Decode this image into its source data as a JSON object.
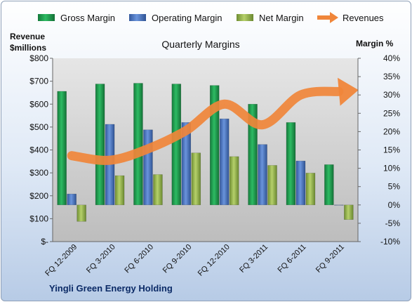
{
  "colors": {
    "gross": "#1f9e4f",
    "operating": "#4a78c8",
    "net": "#98b94a",
    "revenue": "#f0863a",
    "plot_bg": "#d0d0d0"
  },
  "chart_data": {
    "type": "bar",
    "title": "Quarterly Margins",
    "subtitle": "Yingli Green Energy Holding",
    "categories": [
      "FQ 12-2009",
      "FQ 3-2010",
      "FQ 6-2010",
      "FQ 9-2010",
      "FQ 12-2010",
      "FQ 3-2011",
      "FQ 6-2011",
      "FQ 9-2011"
    ],
    "series": [
      {
        "name": "Gross Margin",
        "axis": "right",
        "values": [
          31,
          33,
          33.2,
          33,
          32.6,
          27.5,
          22.5,
          11
        ]
      },
      {
        "name": "Operating Margin",
        "axis": "right",
        "values": [
          3,
          22,
          20.5,
          22.5,
          23.5,
          16.5,
          12,
          0
        ]
      },
      {
        "name": "Net Margin",
        "axis": "right",
        "values": [
          -4.5,
          8,
          8.3,
          14.2,
          13.2,
          10.8,
          8.7,
          -4
        ]
      },
      {
        "name": "Revenues",
        "type": "line",
        "axis": "left",
        "values": [
          375,
          355,
          405,
          485,
          600,
          510,
          640,
          655
        ]
      }
    ],
    "left_axis": {
      "label": "Revenue $millions",
      "ticks": [
        "$-",
        "$100",
        "$200",
        "$300",
        "$400",
        "$500",
        "$600",
        "$700",
        "$800"
      ],
      "range": [
        0,
        800
      ]
    },
    "right_axis": {
      "label": "Margin %",
      "ticks": [
        "-10%",
        "-5%",
        "0%",
        "5%",
        "10%",
        "15%",
        "20%",
        "25%",
        "30%",
        "35%",
        "40%"
      ],
      "range": [
        -10,
        40
      ]
    },
    "legend": {
      "position": "top",
      "entries": [
        "Gross Margin",
        "Operating Margin",
        "Net Margin",
        "Revenues"
      ]
    },
    "grid": false
  }
}
